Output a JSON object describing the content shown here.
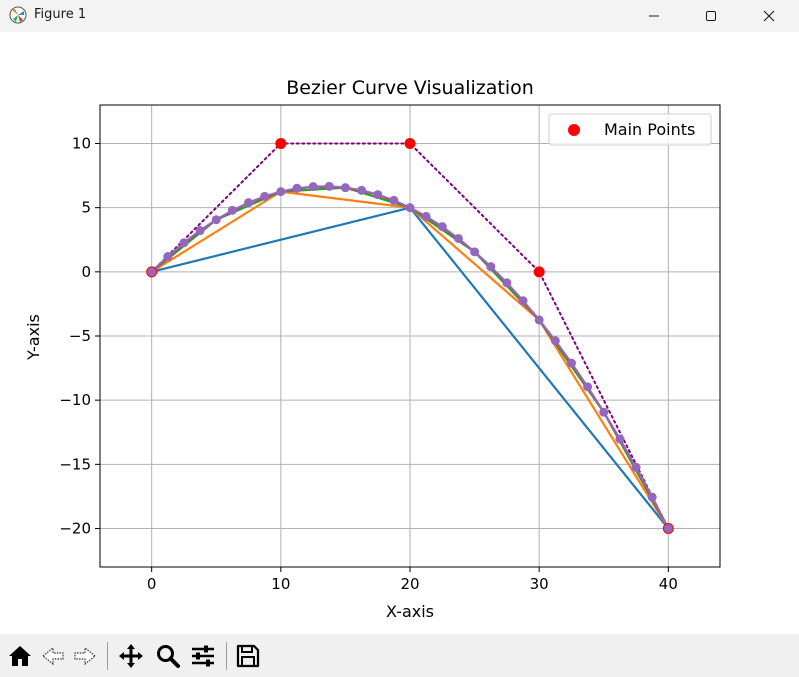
{
  "window": {
    "title": "Figure 1",
    "icons": [
      "matplotlib-icon",
      "minimize-icon",
      "maximize-icon",
      "close-icon"
    ]
  },
  "toolbar": {
    "buttons": [
      "home-icon",
      "back-icon",
      "forward-icon",
      "pan-icon",
      "zoom-icon",
      "configure-subplots-icon",
      "save-icon"
    ]
  },
  "chart_data": {
    "type": "line",
    "title": "Bezier Curve Visualization",
    "xlabel": "X-axis",
    "ylabel": "Y-axis",
    "xlim": [
      -4,
      44
    ],
    "ylim": [
      -23,
      13
    ],
    "xticks": [
      0,
      10,
      20,
      30,
      40
    ],
    "yticks": [
      10,
      5,
      0,
      -5,
      -10,
      -15,
      -20
    ],
    "xtick_labels": [
      "0",
      "10",
      "20",
      "30",
      "40"
    ],
    "ytick_labels": [
      "10",
      "5",
      "0",
      "−5",
      "−10",
      "−15",
      "−20"
    ],
    "grid": true,
    "legend": {
      "placement": "upper right",
      "entries": [
        "Main Points"
      ]
    },
    "main_points": {
      "name": "Main Points",
      "x": [
        0,
        10,
        20,
        30,
        40
      ],
      "y": [
        0,
        10,
        10,
        0,
        -20
      ],
      "color": "#ff0000"
    },
    "control_polygon": {
      "x": [
        0,
        10,
        20,
        30,
        40
      ],
      "y": [
        0,
        10,
        10,
        0,
        -20
      ],
      "color": "#800080",
      "style": "dotted"
    },
    "series": [
      {
        "x": [
          0,
          20,
          40
        ],
        "y": [
          0,
          5,
          -20
        ],
        "color": "#1f77b4"
      },
      {
        "x": [
          0,
          10,
          20,
          30,
          40
        ],
        "y": [
          0,
          6.25,
          5,
          -3.75,
          -20
        ],
        "color": "#ff7f0e"
      },
      {
        "x": [
          0,
          5,
          10,
          15,
          20,
          25,
          30,
          35,
          40
        ],
        "y": [
          0,
          4.06,
          6.25,
          6.56,
          5,
          1.56,
          -3.75,
          -10.94,
          -20
        ],
        "color": "#2ca02c"
      },
      {
        "x": [
          0,
          2.5,
          5,
          7.5,
          10,
          12.5,
          15,
          17.5,
          20,
          22.5,
          25,
          27.5,
          30,
          32.5,
          35,
          37.5,
          40
        ],
        "y": [
          0,
          2.27,
          4.06,
          5.39,
          6.25,
          6.64,
          6.56,
          6.02,
          5,
          3.52,
          1.56,
          -0.86,
          -3.75,
          -7.11,
          -10.94,
          -15.23,
          -20
        ],
        "color": "#d62728"
      },
      {
        "x": [
          0,
          1.25,
          2.5,
          3.75,
          5,
          6.25,
          7.5,
          8.75,
          10,
          11.25,
          12.5,
          13.75,
          15,
          16.25,
          17.5,
          18.75,
          20,
          21.25,
          22.5,
          23.75,
          25,
          26.25,
          27.5,
          28.75,
          30,
          31.25,
          32.5,
          33.75,
          35,
          36.25,
          37.5,
          38.75,
          40
        ],
        "y": [
          0,
          1.19,
          2.27,
          3.22,
          4.06,
          4.79,
          5.39,
          5.88,
          6.25,
          6.51,
          6.64,
          6.66,
          6.56,
          6.35,
          6.02,
          5.57,
          5,
          4.32,
          3.52,
          2.6,
          1.56,
          0.41,
          -0.86,
          -2.25,
          -3.75,
          -5.37,
          -7.11,
          -8.96,
          -10.94,
          -13.03,
          -15.23,
          -17.56,
          -20
        ],
        "color": "#9467bd",
        "markers": true
      }
    ]
  }
}
